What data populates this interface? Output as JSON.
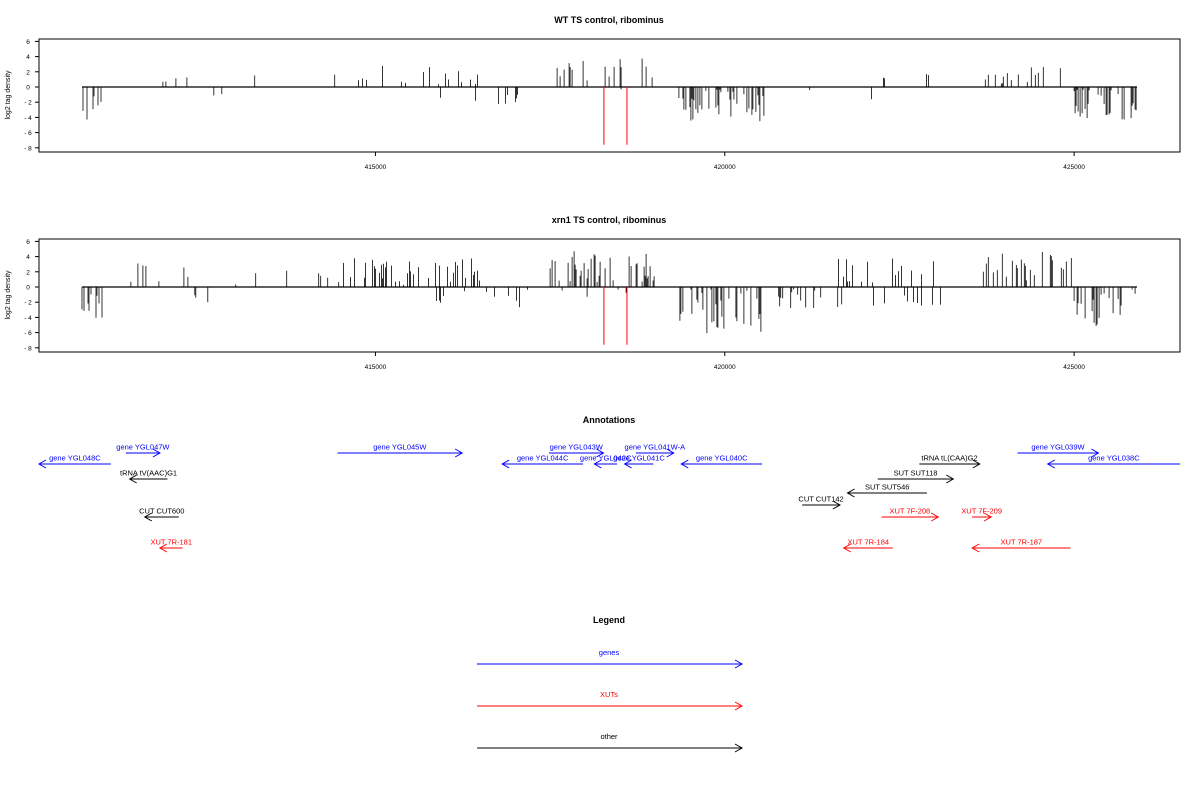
{
  "colors": {
    "genes": "#0000ff",
    "xuts": "#ff0000",
    "other": "#000000",
    "marker": "#ff0000"
  },
  "chart_data": [
    {
      "type": "bar",
      "title": "WT TS control, ribominus",
      "ylabel": "log2 tag density",
      "xlim": [
        410800,
        425900
      ],
      "ylim": [
        -8,
        6
      ],
      "yticks": [
        6,
        4,
        2,
        0,
        -2,
        -4,
        -6,
        -8
      ],
      "xticks": [
        415000,
        420000,
        425000
      ],
      "xtick_labels": [
        "415000",
        "420000",
        "425000"
      ],
      "markers_x": [
        418270,
        418600
      ],
      "density": "sparse"
    },
    {
      "type": "bar",
      "title": "xrn1 TS control, ribominus",
      "ylabel": "log2 tag density",
      "xlim": [
        410800,
        425900
      ],
      "ylim": [
        -8,
        6
      ],
      "yticks": [
        6,
        4,
        2,
        0,
        -2,
        -4,
        -6,
        -8
      ],
      "xticks": [
        415000,
        420000,
        425000
      ],
      "xtick_labels": [
        "415000",
        "420000",
        "425000"
      ],
      "markers_x": [
        418270,
        418600
      ],
      "density": "dense"
    }
  ],
  "annotations": {
    "title": "Annotations",
    "features": [
      {
        "label": "gene YGL048C",
        "category": "genes",
        "strand": "-",
        "start": 410800,
        "end": 411750,
        "row": 1
      },
      {
        "label": "gene YGL047W",
        "category": "genes",
        "strand": "+",
        "start": 411950,
        "end": 412400,
        "row": 0
      },
      {
        "label": "gene YGL045W",
        "category": "genes",
        "strand": "+",
        "start": 414750,
        "end": 416400,
        "row": 0
      },
      {
        "label": "gene YGL044C",
        "category": "genes",
        "strand": "-",
        "start": 416930,
        "end": 418000,
        "row": 1
      },
      {
        "label": "gene YGL043W",
        "category": "genes",
        "strand": "+",
        "start": 417550,
        "end": 418270,
        "row": 0
      },
      {
        "label": "gene YGL042C",
        "category": "genes",
        "strand": "-",
        "start": 418150,
        "end": 418450,
        "row": 1
      },
      {
        "label": "gene YGL041C",
        "category": "genes",
        "strand": "-",
        "start": 418550,
        "end": 418930,
        "row": 1
      },
      {
        "label": "gene YGL041W-A",
        "category": "genes",
        "strand": "+",
        "start": 418700,
        "end": 419200,
        "row": 0
      },
      {
        "label": "gene YGL040C",
        "category": "genes",
        "strand": "-",
        "start": 419300,
        "end": 420370,
        "row": 1
      },
      {
        "label": "gene YGL039W",
        "category": "genes",
        "strand": "+",
        "start": 423750,
        "end": 424820,
        "row": 0
      },
      {
        "label": "gene YGL038C",
        "category": "genes",
        "strand": "-",
        "start": 424150,
        "end": 425900,
        "row": 1
      },
      {
        "label": "tRNA tV(AAC)G1",
        "category": "other",
        "strand": "-",
        "start": 412000,
        "end": 412500,
        "row": 2
      },
      {
        "label": "CUT CUT600",
        "category": "other",
        "strand": "-",
        "start": 412200,
        "end": 412650,
        "row": 5
      },
      {
        "label": "XUT 7R-181",
        "category": "xuts",
        "strand": "-",
        "start": 412400,
        "end": 412700,
        "row": 6
      },
      {
        "label": "tRNA tL(CAA)G2",
        "category": "other",
        "strand": "+",
        "start": 422450,
        "end": 423250,
        "row": 1
      },
      {
        "label": "SUT SUT118",
        "category": "other",
        "strand": "+",
        "start": 421900,
        "end": 422900,
        "row": 2
      },
      {
        "label": "SUT SUT546",
        "category": "other",
        "strand": "-",
        "start": 421500,
        "end": 422550,
        "row": 3
      },
      {
        "label": "CUT CUT142",
        "category": "other",
        "strand": "+",
        "start": 420900,
        "end": 421400,
        "row": 4
      },
      {
        "label": "XUT 7F-208",
        "category": "xuts",
        "strand": "+",
        "start": 421950,
        "end": 422700,
        "row": 5
      },
      {
        "label": "XUT 7R-184",
        "category": "xuts",
        "strand": "-",
        "start": 421450,
        "end": 422100,
        "row": 6
      },
      {
        "label": "XUT 7F-209",
        "category": "xuts",
        "strand": "+",
        "start": 423150,
        "end": 423400,
        "row": 5
      },
      {
        "label": "XUT 7R-187",
        "category": "xuts",
        "strand": "-",
        "start": 423150,
        "end": 424450,
        "row": 6
      }
    ]
  },
  "legend": {
    "title": "Legend",
    "items": [
      {
        "label": "genes",
        "category": "genes"
      },
      {
        "label": "XUTs",
        "category": "xuts"
      },
      {
        "label": "other",
        "category": "other"
      }
    ]
  }
}
